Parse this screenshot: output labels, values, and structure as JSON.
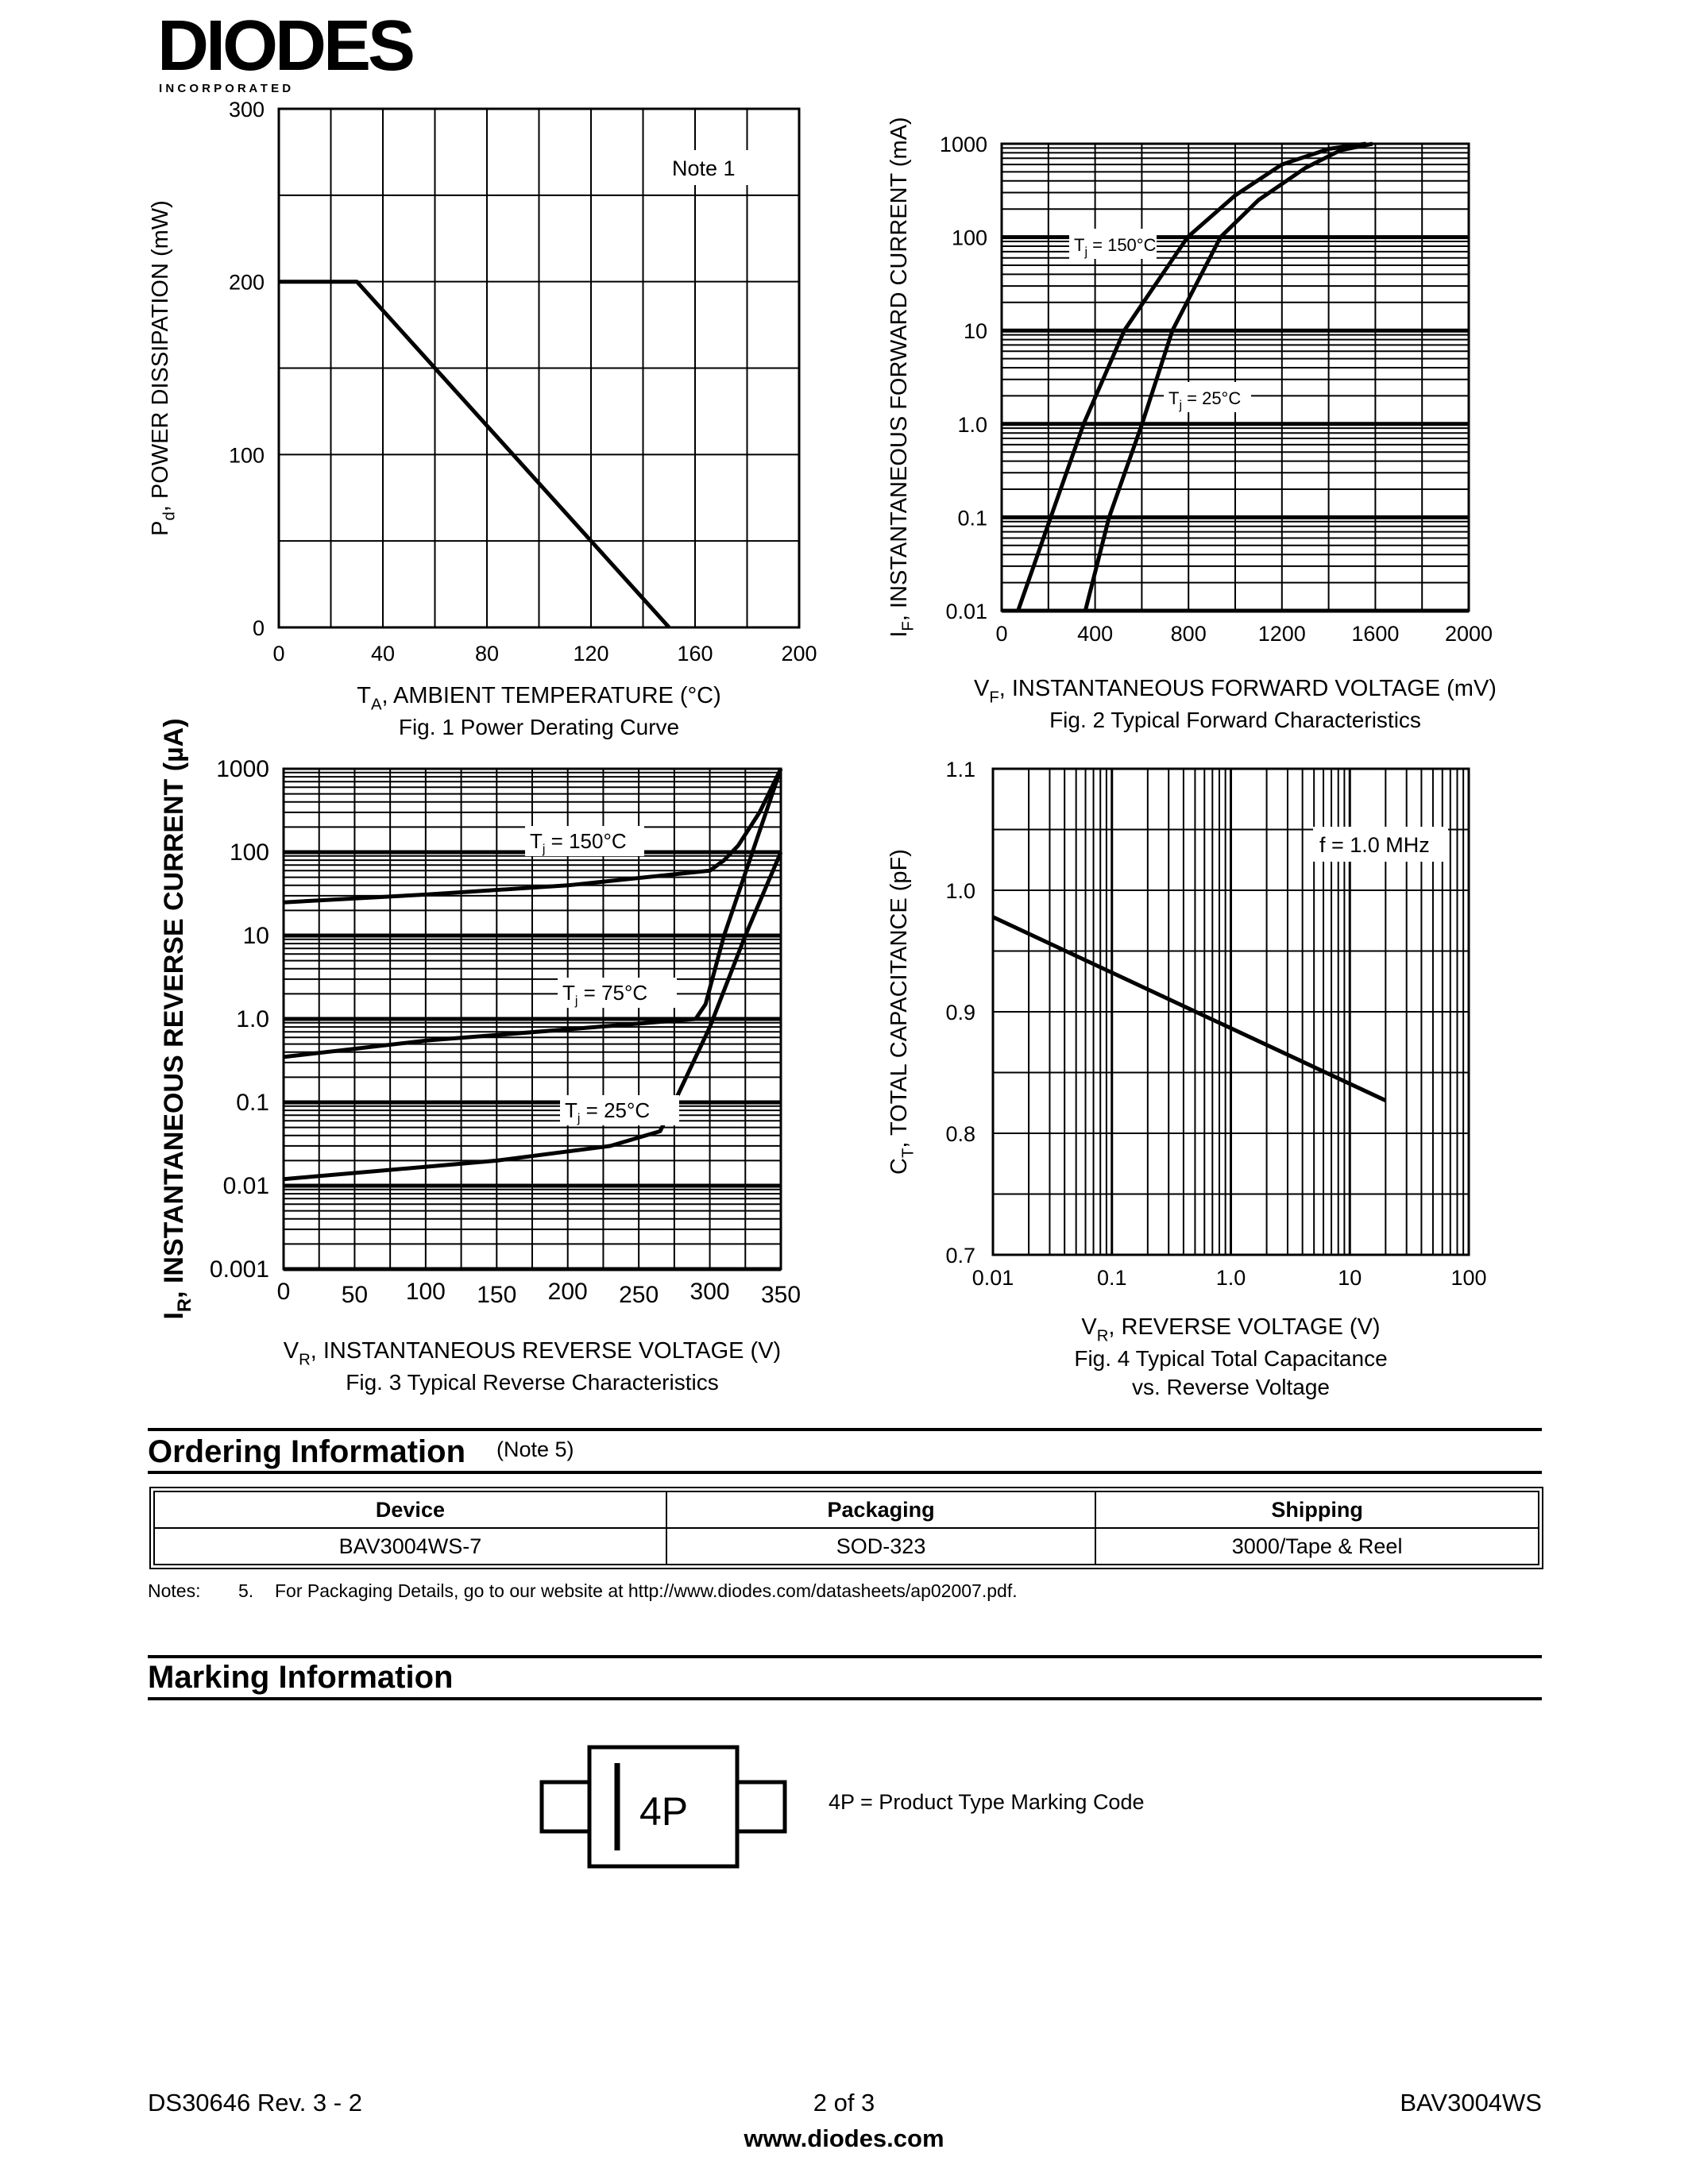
{
  "header": {
    "logo_text": "DIODES",
    "logo_sub": "I N C O R P O R A T E D"
  },
  "chart_data": [
    {
      "type": "line",
      "title": "Fig. 1  Power Derating Curve",
      "xlabel": "T_A, AMBIENT TEMPERATURE (°C)",
      "ylabel": "P_d, POWER DISSIPATION (mW)",
      "xlim": [
        0,
        200
      ],
      "ylim": [
        0,
        300
      ],
      "xticks": [
        0,
        40,
        80,
        120,
        160,
        200
      ],
      "yticks": [
        0,
        100,
        200,
        300
      ],
      "grid": true,
      "annotations": [
        "Note 1"
      ],
      "series": [
        {
          "x": [
            0,
            30,
            150
          ],
          "y": [
            200,
            200,
            0
          ]
        }
      ]
    },
    {
      "type": "line",
      "title": "Fig. 2  Typical Forward Characteristics",
      "xlabel": "V_F, INSTANTANEOUS FORWARD VOLTAGE (mV)",
      "ylabel": "I_F, INSTANTANEOUS FORWARD CURRENT (mA)",
      "xlim": [
        0,
        2000
      ],
      "ylim": [
        0.01,
        1000
      ],
      "yscale": "log",
      "xticks": [
        "0",
        "400",
        "800",
        "1200",
        "1600",
        "2000"
      ],
      "yticks": [
        "0.01",
        "0.1",
        "1.0",
        "10",
        "100",
        "1000"
      ],
      "grid": true,
      "series": [
        {
          "name": "Tj = 150°C",
          "x": [
            70,
            210,
            351,
            525,
            796,
            1000,
            1200,
            1400,
            1560
          ],
          "y": [
            0.01,
            0.1,
            1,
            10,
            100,
            280,
            600,
            880,
            1000
          ]
        },
        {
          "name": "Tj = 25°C",
          "x": [
            358,
            460,
            601,
            731,
            937,
            1100,
            1300,
            1450,
            1588
          ],
          "y": [
            0.01,
            0.1,
            1,
            10,
            100,
            250,
            550,
            850,
            1000
          ]
        }
      ]
    },
    {
      "type": "line",
      "title": "Fig. 3  Typical Reverse Characteristics",
      "xlabel": "V_R, INSTANTANEOUS REVERSE VOLTAGE (V)",
      "ylabel": "I_R, INSTANTANEOUS REVERSE CURRENT (µA)",
      "xlim": [
        0,
        350
      ],
      "ylim": [
        0.001,
        1000
      ],
      "yscale": "log",
      "xticks": [
        "0",
        "50",
        "100",
        "150",
        "200",
        "250",
        "300",
        "350"
      ],
      "yticks": [
        "0.001",
        "0.01",
        "0.1",
        "1.0",
        "10",
        "100",
        "1000"
      ],
      "grid": true,
      "series": [
        {
          "name": "Tj = 150°C",
          "x": [
            0,
            100,
            200,
            300,
            310,
            320,
            335,
            350
          ],
          "y": [
            25,
            31,
            40,
            60,
            80,
            120,
            300,
            1000
          ]
        },
        {
          "name": "Tj = 75°C",
          "x": [
            0,
            100,
            200,
            290,
            297,
            310,
            330,
            350
          ],
          "y": [
            0.35,
            0.55,
            0.75,
            1.0,
            1.5,
            10,
            100,
            1000
          ]
        },
        {
          "name": "Tj = 25°C",
          "x": [
            0,
            150,
            230,
            265,
            275,
            300,
            325,
            350
          ],
          "y": [
            0.012,
            0.02,
            0.03,
            0.045,
            0.1,
            0.8,
            10,
            100
          ]
        }
      ]
    },
    {
      "type": "line",
      "title": "Fig. 4  Typical Total Capacitance",
      "subtitle": "vs. Reverse Voltage",
      "xlabel": "V_R, REVERSE VOLTAGE (V)",
      "ylabel": "C_T, TOTAL CAPACITANCE (pF)",
      "xlim": [
        0.01,
        100
      ],
      "xscale": "log",
      "ylim": [
        0.7,
        1.1
      ],
      "xticks": [
        "0.01",
        "0.1",
        "1.0",
        "10",
        "100"
      ],
      "yticks": [
        "0.7",
        "0.8",
        "0.9",
        "1.0",
        "1.1"
      ],
      "grid": true,
      "annotations": [
        "f = 1.0 MHz"
      ],
      "series": [
        {
          "x": [
            0.01,
            20
          ],
          "y": [
            0.978,
            0.827
          ]
        }
      ]
    }
  ],
  "ordering": {
    "title": "Ordering Information",
    "note_ref": "(Note 5)",
    "columns": [
      "Device",
      "Packaging",
      "Shipping"
    ],
    "rows": [
      [
        "BAV3004WS-7",
        "SOD-323",
        "3000/Tape & Reel"
      ]
    ],
    "notes_label": "Notes:",
    "note_num": "5.",
    "note_text": "For Packaging Details, go to our website at http://www.diodes.com/datasheets/ap02007.pdf."
  },
  "marking": {
    "title": "Marking Information",
    "code": "4P",
    "legend": "4P = Product Type Marking Code"
  },
  "footer": {
    "doc": "DS30646 Rev. 3 - 2",
    "page": "2 of 3",
    "part": "BAV3004WS",
    "website": "www.diodes.com"
  }
}
